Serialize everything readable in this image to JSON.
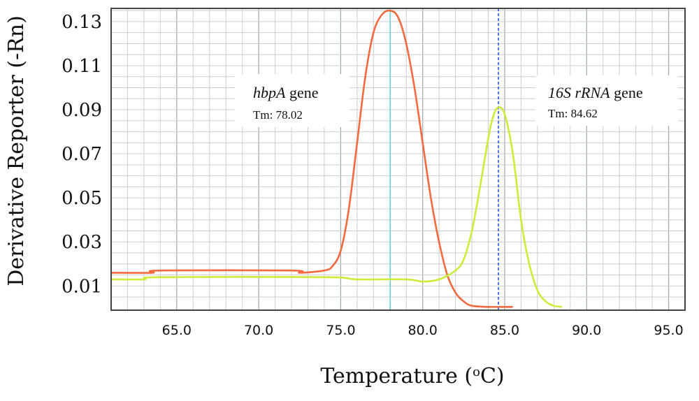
{
  "chart_data": {
    "type": "line",
    "title": "",
    "xlabel": "Temperature (",
    "xlabel_sup": "o",
    "xlabel_end": "C)",
    "ylabel": "Derivative Reporter (-Rn)",
    "xlim": [
      61,
      96
    ],
    "ylim": [
      -0.001,
      0.136
    ],
    "x_ticks": [
      65,
      70,
      75,
      80,
      85,
      90,
      95
    ],
    "x_tick_labels": [
      "65.0",
      "70.0",
      "75.0",
      "80.0",
      "85.0",
      "90.0",
      "95.0"
    ],
    "y_ticks": [
      0.01,
      0.03,
      0.05,
      0.07,
      0.09,
      0.11,
      0.13
    ],
    "y_tick_labels": [
      "0.01",
      "0.03",
      "0.05",
      "0.07",
      "0.09",
      "0.11",
      "0.13"
    ],
    "grid": true,
    "series": [
      {
        "color": "#f26a3e",
        "x": [
          61,
          63.5,
          64,
          72,
          72.5,
          74,
          74.5,
          75,
          75.5,
          76,
          76.5,
          77,
          77.5,
          78,
          78.5,
          79,
          79.5,
          80,
          80.5,
          81,
          81.5,
          82,
          82.5,
          83,
          84,
          85,
          85.5
        ],
        "y": [
          0.016,
          0.016,
          0.017,
          0.017,
          0.016,
          0.017,
          0.019,
          0.026,
          0.045,
          0.075,
          0.105,
          0.125,
          0.133,
          0.135,
          0.132,
          0.12,
          0.1,
          0.075,
          0.05,
          0.03,
          0.015,
          0.007,
          0.003,
          0.001,
          0.0005,
          0.0005,
          0.0005
        ]
      },
      {
        "color": "#ccec3a",
        "x": [
          61,
          63,
          64,
          74,
          76,
          79,
          80,
          81,
          82,
          82.5,
          83,
          83.5,
          84,
          84.3,
          84.6,
          85,
          85.5,
          86,
          86.5,
          87,
          87.5,
          88,
          88.5
        ],
        "y": [
          0.013,
          0.013,
          0.014,
          0.014,
          0.013,
          0.013,
          0.012,
          0.013,
          0.017,
          0.022,
          0.035,
          0.055,
          0.077,
          0.087,
          0.091,
          0.088,
          0.07,
          0.04,
          0.02,
          0.008,
          0.003,
          0.001,
          0.0005
        ]
      }
    ],
    "vlines": [
      {
        "x": 78.02,
        "color": "#6ad8dc",
        "style": "solid"
      },
      {
        "x": 84.62,
        "color": "#2255e0",
        "style": "dashed"
      }
    ],
    "annotations": [
      {
        "name_italic": "hbpA",
        "name_rest": " gene",
        "tm": "Tm: 78.02"
      },
      {
        "name_italic": "16S rRNA",
        "name_rest": " gene",
        "tm": "Tm: 84.62"
      }
    ]
  }
}
